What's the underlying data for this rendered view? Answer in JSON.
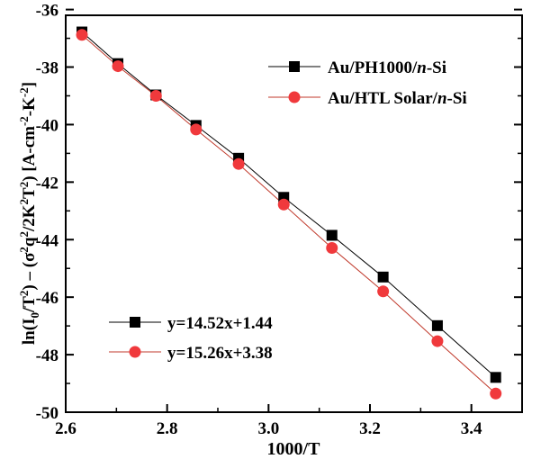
{
  "chart_data": {
    "type": "scatter",
    "xlabel": "1000/T",
    "ylabel_parts": [
      "ln(I",
      "0",
      "/T",
      "2",
      ") – (σ",
      "2",
      "q",
      "2",
      "/2K",
      "2",
      "T",
      "2",
      ") [A-cm",
      "-2",
      "-K",
      "-2",
      "]"
    ],
    "xlim": [
      2.6,
      3.5
    ],
    "ylim": [
      -50,
      -36.2
    ],
    "xticks": [
      "2.6",
      "2.8",
      "3.0",
      "3.2",
      "3.4"
    ],
    "yticks": [
      "-36",
      "-38",
      "-40",
      "-42",
      "-44",
      "-46",
      "-48",
      "-50"
    ],
    "grid": false,
    "legend_series": {
      "placement": "top-right",
      "entries": [
        {
          "pre": "Au/PH1000/",
          "italic": "n",
          "post": "-Si"
        },
        {
          "pre": "Au/HTL Solar/",
          "italic": "n",
          "post": "-Si"
        }
      ]
    },
    "legend_fits": {
      "placement": "bottom-left",
      "entries": [
        "y=14.52x+1.44",
        "y=15.26x+3.38"
      ]
    },
    "series": [
      {
        "marker": "square",
        "color": "#000000",
        "line_color": "#000000",
        "x": [
          2.632,
          2.703,
          2.778,
          2.857,
          2.941,
          3.03,
          3.125,
          3.226,
          3.333,
          3.448
        ],
        "y": [
          -36.78,
          -37.88,
          -38.97,
          -40.03,
          -41.17,
          -42.53,
          -43.85,
          -45.3,
          -46.99,
          -48.79
        ]
      },
      {
        "marker": "circle",
        "color": "#f0393c",
        "line_color": "#c0392b",
        "x": [
          2.632,
          2.703,
          2.778,
          2.857,
          2.941,
          3.03,
          3.125,
          3.226,
          3.333,
          3.448
        ],
        "y": [
          -36.88,
          -37.97,
          -39.0,
          -40.17,
          -41.37,
          -42.78,
          -44.29,
          -45.8,
          -47.53,
          -49.35
        ]
      }
    ]
  }
}
